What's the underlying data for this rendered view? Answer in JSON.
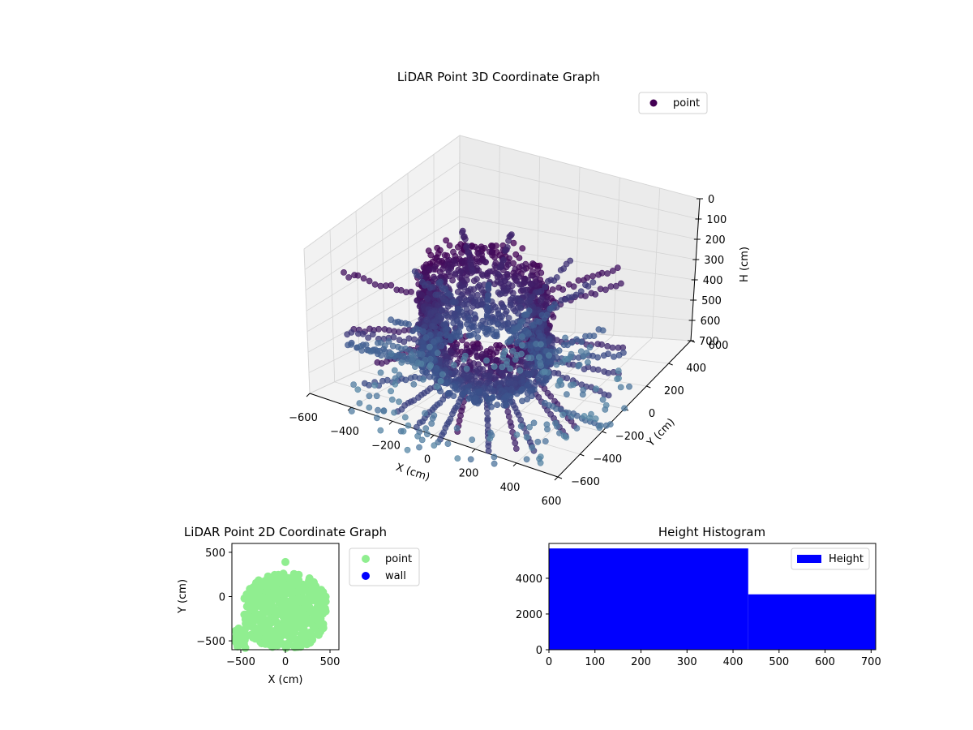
{
  "chart_data": [
    {
      "type": "scatter",
      "projection": "3d",
      "title": "LiDAR Point 3D Coordinate Graph",
      "xlabel": "X (cm)",
      "ylabel": "Y (cm)",
      "zlabel": "H (cm)",
      "xlim": [
        -600,
        600
      ],
      "ylim": [
        -600,
        600
      ],
      "zlim": [
        0,
        700
      ],
      "zaxis_inverted": true,
      "xticks": [
        "−600",
        "−400",
        "−200",
        "0",
        "200",
        "400",
        "600"
      ],
      "yticks": [
        "−600",
        "−400",
        "−200",
        "0",
        "200",
        "400",
        "600"
      ],
      "zticks": [
        "0",
        "100",
        "200",
        "300",
        "400",
        "500",
        "600",
        "700"
      ],
      "legend": [
        "point"
      ],
      "legend_position": "top-right",
      "grid": true,
      "colormap": "viridis",
      "colors": {
        "dark": "#440154",
        "mid": "#3b528b",
        "light": "#5b8fa9"
      },
      "description_of_shape": "dense cylinder of points around the origin, radius about 250 cm, heights 0 to 700 cm, plus sparse radial line segments extending outward",
      "series": [
        {
          "name": "point",
          "ring_radius_cm": 250,
          "ring_center": [
            0,
            -150
          ],
          "height_range": [
            0,
            700
          ]
        }
      ]
    },
    {
      "type": "scatter",
      "title": "LiDAR Point 2D Coordinate Graph",
      "xlabel": "X (cm)",
      "ylabel": "Y (cm)",
      "xlim": [
        -600,
        600
      ],
      "ylim": [
        -600,
        600
      ],
      "xticks": [
        "−500",
        "0",
        "500"
      ],
      "yticks": [
        "−500",
        "0",
        "500"
      ],
      "legend": [
        "point",
        "wall"
      ],
      "legend_position": "outside-right",
      "colors": {
        "point": "#90ee90",
        "wall": "#0000ff"
      },
      "series": [
        {
          "name": "point",
          "region": {
            "x": [
              -460,
              460
            ],
            "y": [
              -580,
              260
            ]
          },
          "outlier": [
            0,
            390
          ]
        },
        {
          "name": "wall",
          "points": []
        }
      ]
    },
    {
      "type": "bar",
      "subtype": "histogram",
      "title": "Height Histogram",
      "xlim": [
        0,
        710
      ],
      "ylim": [
        0,
        5950
      ],
      "xticks": [
        "0",
        "100",
        "200",
        "300",
        "400",
        "500",
        "600",
        "700"
      ],
      "yticks": [
        "0",
        "2000",
        "4000"
      ],
      "legend": [
        "Height"
      ],
      "legend_position": "top-right",
      "color": "#0000ff",
      "bins": [
        {
          "from": 0,
          "to": 433,
          "count": 5670
        },
        {
          "from": 433,
          "to": 710,
          "count": 3100
        }
      ]
    }
  ]
}
